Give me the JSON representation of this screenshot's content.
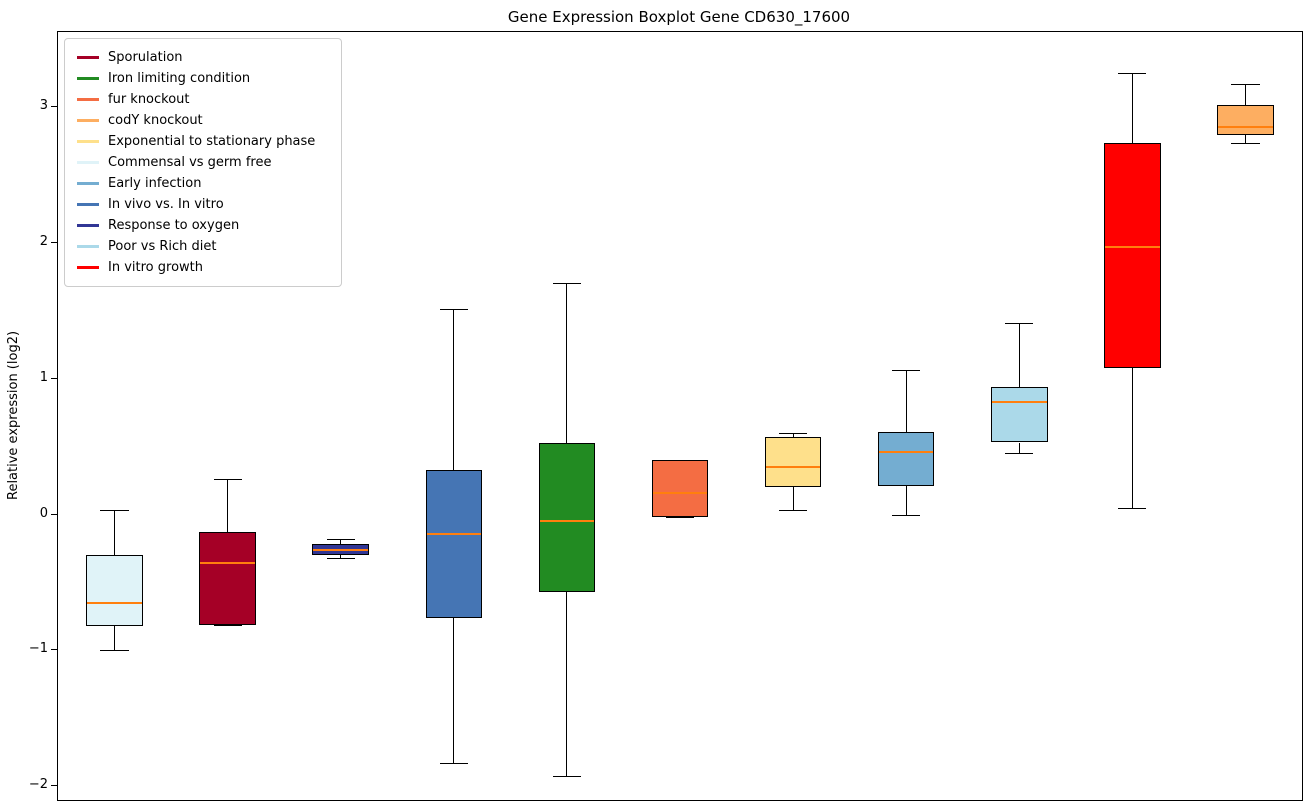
{
  "title": "Gene Expression Boxplot Gene CD630_17600",
  "ylabel": "Relative expression (log2)",
  "legend": {
    "items": [
      {
        "label": "Sporulation",
        "color": "#a50026"
      },
      {
        "label": "Iron limiting condition",
        "color": "#228b22"
      },
      {
        "label": "fur knockout",
        "color": "#f46d43"
      },
      {
        "label": "codY knockout",
        "color": "#fdae61"
      },
      {
        "label": "Exponential to stationary phase",
        "color": "#fee08b"
      },
      {
        "label": "Commensal vs germ free",
        "color": "#e0f3f8"
      },
      {
        "label": "Early infection",
        "color": "#74add1"
      },
      {
        "label": "In vivo vs. In vitro",
        "color": "#4575b4"
      },
      {
        "label": "Response to oxygen",
        "color": "#313695"
      },
      {
        "label": "Poor vs Rich diet",
        "color": "#abd9e9"
      },
      {
        "label": "In vitro growth",
        "color": "#ff0000"
      }
    ]
  },
  "chart_data": {
    "type": "boxplot",
    "title": "Gene Expression Boxplot Gene CD630_17600",
    "xlabel": "",
    "ylabel": "Relative expression (log2)",
    "ylim": [
      -2.1,
      3.55
    ],
    "yticks": [
      3,
      2,
      1,
      0,
      -1,
      -2
    ],
    "grid": false,
    "legend_position": "upper left",
    "median_color": "#ff7f0e",
    "boxes": [
      {
        "condition": "Commensal vs germ free",
        "color": "#e0f3f8",
        "whisker_low": -1.0,
        "q1": -0.82,
        "median": -0.65,
        "q3": -0.3,
        "whisker_high": 0.03
      },
      {
        "condition": "Sporulation",
        "color": "#a50026",
        "whisker_low": -0.81,
        "q1": -0.81,
        "median": -0.36,
        "q3": -0.13,
        "whisker_high": 0.26
      },
      {
        "condition": "Response to oxygen",
        "color": "#313695",
        "whisker_low": -0.32,
        "q1": -0.3,
        "median": -0.26,
        "q3": -0.22,
        "whisker_high": -0.18
      },
      {
        "condition": "In vivo vs. In vitro",
        "color": "#4575b4",
        "whisker_low": -1.83,
        "q1": -0.76,
        "median": -0.14,
        "q3": 0.33,
        "whisker_high": 1.51
      },
      {
        "condition": "Iron limiting condition",
        "color": "#228b22",
        "whisker_low": -1.92,
        "q1": -0.57,
        "median": -0.05,
        "q3": 0.53,
        "whisker_high": 1.7
      },
      {
        "condition": "fur knockout",
        "color": "#f46d43",
        "whisker_low": -0.02,
        "q1": -0.02,
        "median": 0.16,
        "q3": 0.4,
        "whisker_high": 0.4
      },
      {
        "condition": "Exponential to stationary phase",
        "color": "#fee08b",
        "whisker_low": 0.03,
        "q1": 0.2,
        "median": 0.35,
        "q3": 0.57,
        "whisker_high": 0.6
      },
      {
        "condition": "Early infection",
        "color": "#74add1",
        "whisker_low": 0.0,
        "q1": 0.21,
        "median": 0.46,
        "q3": 0.61,
        "whisker_high": 1.06
      },
      {
        "condition": "Poor vs Rich diet",
        "color": "#abd9e9",
        "whisker_low": 0.45,
        "q1": 0.53,
        "median": 0.83,
        "q3": 0.94,
        "whisker_high": 1.41
      },
      {
        "condition": "In vitro growth",
        "color": "#ff0000",
        "whisker_low": 0.05,
        "q1": 1.08,
        "median": 1.97,
        "q3": 2.73,
        "whisker_high": 3.25
      },
      {
        "condition": "codY knockout",
        "color": "#fdae61",
        "whisker_low": 2.73,
        "q1": 2.79,
        "median": 2.85,
        "q3": 3.01,
        "whisker_high": 3.17
      }
    ]
  }
}
